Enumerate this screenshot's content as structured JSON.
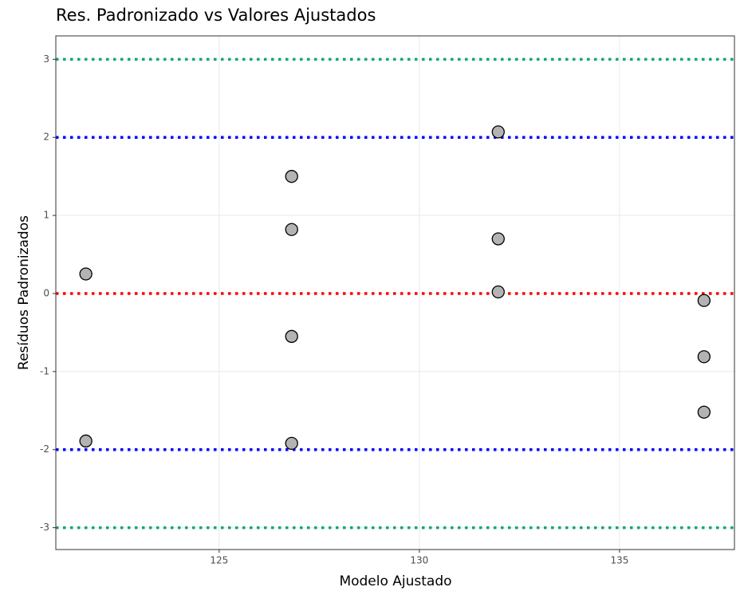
{
  "chart_data": {
    "type": "scatter",
    "title": "Res. Padronizado vs Valores Ajustados",
    "x_label": "Modelo Ajustado",
    "y_label": "Resíduos Padronizados",
    "series": [
      {
        "color": "#b3b3b3",
        "x": [
          121.67,
          121.67,
          126.81,
          126.81,
          126.81,
          126.81,
          131.97,
          131.97,
          131.97,
          137.11,
          137.11,
          137.11
        ],
        "values": [
          0.25,
          -1.89,
          1.5,
          0.82,
          -0.55,
          -1.92,
          2.07,
          0.7,
          0.02,
          -0.09,
          -0.81,
          -1.52
        ]
      }
    ],
    "xlim": [
      120.92,
      137.87
    ],
    "ylim": [
      -3.28,
      3.3
    ],
    "xticks": [
      125,
      130,
      135
    ],
    "yticks": [
      -3,
      -2,
      -1,
      0,
      1,
      2,
      3
    ],
    "grid": true,
    "hlines": [
      {
        "value": 3,
        "color": "#14a676"
      },
      {
        "value": 2,
        "color": "#0000ff"
      },
      {
        "value": 0,
        "color": "#ff0000"
      },
      {
        "value": -2,
        "color": "#0000ff"
      },
      {
        "value": -3,
        "color": "#14a676"
      }
    ]
  }
}
